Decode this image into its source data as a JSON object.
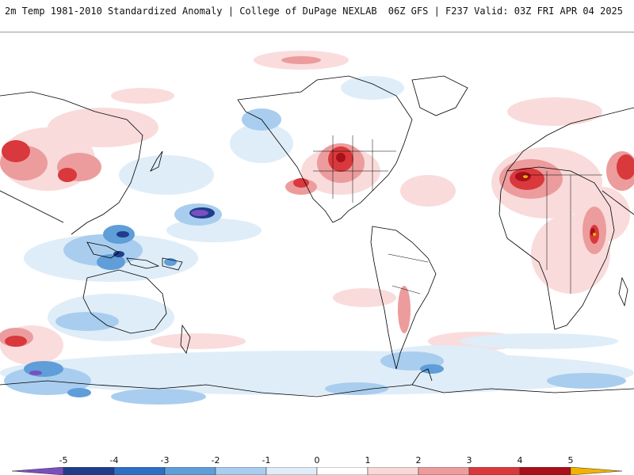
{
  "header": {
    "left_title": "2m Temp 1981-2010 Standardized Anomaly | College of DuPage NEXLAB",
    "right_title": "06Z GFS | F237 Valid: 03Z FRI APR 04 2025"
  },
  "colorbar": {
    "labels": [
      "-5",
      "-4",
      "-3",
      "-2",
      "-1",
      "0",
      "1",
      "2",
      "3",
      "4",
      "5"
    ],
    "colors": {
      "lt_minus5": "#7a4fbf",
      "m5_m4": "#1f3d8a",
      "m4_m3": "#2e6fc4",
      "m3_m2": "#5f9ed8",
      "m2_m1": "#a9cdee",
      "m1_0": "#dfedf8",
      "p0_p1": "#ffffff",
      "p1_p2": "#f9d8d8",
      "p2_p3": "#ec9c9c",
      "p3_p4": "#d9393c",
      "p4_p5": "#a8101a",
      "gt_p5": "#f0b400"
    }
  },
  "map": {
    "projection": "equirectangular, Pacific-centered",
    "coastline_color": "#000000"
  }
}
